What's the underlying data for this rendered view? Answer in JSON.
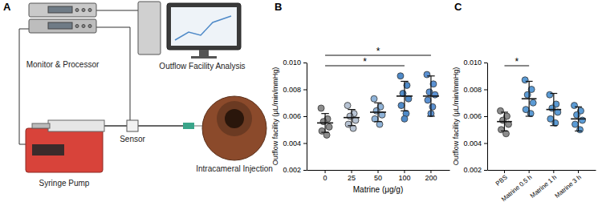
{
  "diagram": {
    "label": "A",
    "nodes": [
      {
        "label": "Monitor & Processor"
      },
      {
        "label": "Outflow Facility Analysis"
      },
      {
        "label": "Syringe Pump"
      },
      {
        "label": "Sensor"
      },
      {
        "label": "Intracameral Injection"
      }
    ]
  },
  "chart_data": [
    {
      "panel_label": "B",
      "type": "scatter",
      "categories": [
        "0",
        "25",
        "50",
        "100",
        "200"
      ],
      "x_label": "Matrine (μg/g)",
      "y_label": "Outflow facility (μL/min/mmHg)",
      "points": [
        [
          0.0066,
          0.0058,
          0.0056,
          0.0052,
          0.0049,
          0.0046
        ],
        [
          0.0068,
          0.0062,
          0.006,
          0.0057,
          0.0054,
          0.0051
        ],
        [
          0.0073,
          0.0067,
          0.0064,
          0.0061,
          0.0058,
          0.0054
        ],
        [
          0.009,
          0.0083,
          0.0077,
          0.0073,
          0.0068,
          0.0062,
          0.0058
        ],
        [
          0.0091,
          0.0084,
          0.0078,
          0.0076,
          0.0072,
          0.0067,
          0.0062
        ]
      ],
      "means": [
        0.0055,
        0.0059,
        0.0063,
        0.0075,
        0.0075
      ],
      "sd": [
        0.0007,
        0.0006,
        0.0007,
        0.0011,
        0.0015
      ],
      "colors": [
        "#8c8c8c",
        "#b7c3d3",
        "#8fb3d8",
        "#4f8ac8",
        "#5b91d2"
      ],
      "ylim": [
        0.002,
        0.01
      ],
      "yticks": [
        0.002,
        0.004,
        0.006,
        0.008,
        {
          "value": 0.01,
          "label": "0.010"
        }
      ],
      "grid": false,
      "annotations": [
        {
          "from": "0",
          "to": "100",
          "text": "*"
        },
        {
          "from": "0",
          "to": "200",
          "text": "*"
        }
      ]
    },
    {
      "panel_label": "C",
      "type": "scatter",
      "categories": [
        "PBS",
        "Matrine 0.5 h",
        "Matrine 1 h",
        "Matrine 3 h"
      ],
      "y_label": "Outflow facility (μL/min/mmHg)",
      "points": [
        [
          0.0064,
          0.006,
          0.0057,
          0.0054,
          0.005,
          0.0047
        ],
        [
          0.0087,
          0.008,
          0.0076,
          0.007,
          0.0065,
          0.0062
        ],
        [
          0.0076,
          0.0069,
          0.0066,
          0.0063,
          0.0058,
          0.0055
        ],
        [
          0.0068,
          0.0064,
          0.0061,
          0.0057,
          0.0054,
          0.005
        ]
      ],
      "means": [
        0.0056,
        0.0073,
        0.0065,
        0.0058
      ],
      "sd": [
        0.0007,
        0.0013,
        0.0012,
        0.0009
      ],
      "colors": [
        "#8c8c8c",
        "#5b9bd5",
        "#5b9bd5",
        "#5b9bd5"
      ],
      "ylim": [
        0.002,
        0.01
      ],
      "yticks": [
        0.002,
        0.004,
        0.006,
        0.008,
        {
          "value": 0.01,
          "label": "0.010"
        }
      ],
      "grid": false,
      "annotations": [
        {
          "from": "PBS",
          "to": "Matrine 0.5 h",
          "text": "*"
        }
      ]
    }
  ]
}
